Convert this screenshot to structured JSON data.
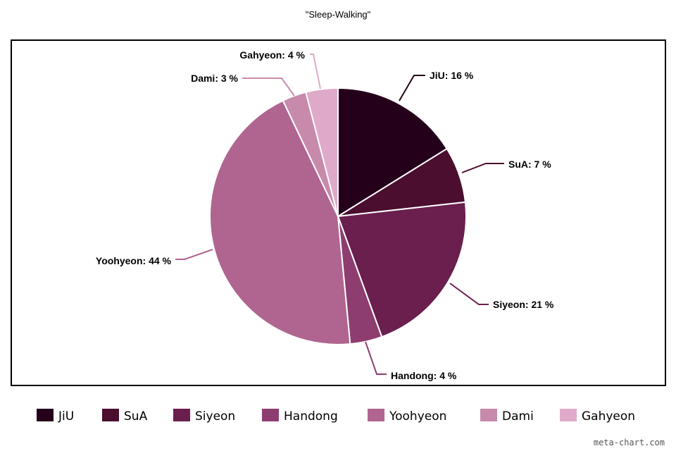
{
  "chart_data": {
    "type": "pie",
    "title": "\"Sleep-Walking\"",
    "series": [
      {
        "name": "JiU",
        "value": 16,
        "label": "JiU: 16 %",
        "color": "#25001a"
      },
      {
        "name": "SuA",
        "value": 7,
        "label": "SuA: 7 %",
        "color": "#4b0e2e"
      },
      {
        "name": "Siyeon",
        "value": 21,
        "label": "Siyeon: 21 %",
        "color": "#6a1f4e"
      },
      {
        "name": "Handong",
        "value": 4,
        "label": "Handong: 4 %",
        "color": "#8e3d70"
      },
      {
        "name": "Yoohyeon",
        "value": 44,
        "label": "Yoohyeon: 44 %",
        "color": "#b06590"
      },
      {
        "name": "Dami",
        "value": 3,
        "label": "Dami: 3 %",
        "color": "#c88aab"
      },
      {
        "name": "Gahyeon",
        "value": 4,
        "label": "Gahyeon: 4 %",
        "color": "#dfaac9"
      }
    ],
    "legend_position": "bottom"
  },
  "watermark": "meta-chart.com"
}
